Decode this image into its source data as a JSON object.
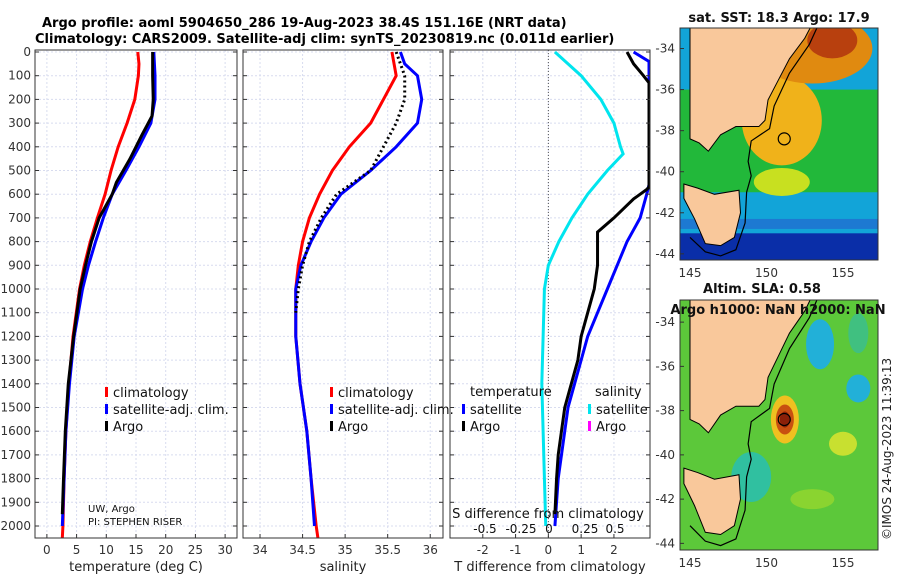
{
  "title_line1": "Argo profile: aoml 5904650_286 19-Aug-2023 38.4S 151.16E (NRT data)",
  "title_line2": "Climatology: CARS2009. Satellite-adj clim: synTS_20230819.nc (0.011d earlier)",
  "copyright": "©IMOS 24-Aug-2023 11:39:13",
  "colors": {
    "climatology": "#ff0000",
    "satellite": "#0000ff",
    "argo": "#000000",
    "s_satellite": "#00e5ee",
    "s_argo": "#ff00ff",
    "land": "#f9c89b"
  },
  "chart_data": [
    {
      "type": "line",
      "name": "temperature-profile",
      "xlabel": "temperature (deg C)",
      "ylabel": "depth",
      "xlim": [
        -2,
        32
      ],
      "ylim": [
        2050,
        0
      ],
      "xticks": [
        0,
        5,
        10,
        15,
        20,
        25,
        30
      ],
      "yticks": [
        0,
        100,
        200,
        300,
        400,
        500,
        600,
        700,
        800,
        900,
        1000,
        1100,
        1200,
        1300,
        1400,
        1500,
        1600,
        1700,
        1800,
        1900,
        2000
      ],
      "legend": [
        "climatology",
        "satellite-adj. clim.",
        "Argo"
      ],
      "note_line1": "UW, Argo",
      "note_line2": "PI: STEPHEN RISER",
      "series": [
        {
          "name": "climatology",
          "color": "#ff0000",
          "points": [
            [
              0,
              15.3
            ],
            [
              50,
              15.5
            ],
            [
              100,
              15.4
            ],
            [
              200,
              14.8
            ],
            [
              300,
              13.5
            ],
            [
              400,
              12
            ],
            [
              500,
              10.8
            ],
            [
              600,
              9.8
            ],
            [
              700,
              8.5
            ],
            [
              800,
              7.3
            ],
            [
              900,
              6.3
            ],
            [
              1000,
              5.5
            ],
            [
              1200,
              4.4
            ],
            [
              1400,
              3.7
            ],
            [
              1600,
              3.2
            ],
            [
              1800,
              2.9
            ],
            [
              2000,
              2.7
            ],
            [
              2050,
              2.6
            ]
          ]
        },
        {
          "name": "satellite-adj. clim.",
          "color": "#0000ff",
          "points": [
            [
              0,
              18
            ],
            [
              100,
              18.2
            ],
            [
              200,
              18.2
            ],
            [
              300,
              17.5
            ],
            [
              400,
              15.5
            ],
            [
              500,
              13.3
            ],
            [
              600,
              11
            ],
            [
              700,
              9.5
            ],
            [
              800,
              8.2
            ],
            [
              900,
              7
            ],
            [
              1000,
              6
            ],
            [
              1200,
              4.6
            ],
            [
              1400,
              3.8
            ],
            [
              1600,
              3.2
            ],
            [
              1800,
              2.9
            ],
            [
              2000,
              2.6
            ]
          ]
        },
        {
          "name": "Argo",
          "color": "#000000",
          "points": [
            [
              0,
              17.8
            ],
            [
              100,
              17.8
            ],
            [
              200,
              17.9
            ],
            [
              270,
              17.7
            ],
            [
              350,
              16
            ],
            [
              450,
              14
            ],
            [
              550,
              11.7
            ],
            [
              600,
              11
            ],
            [
              700,
              8.8
            ],
            [
              800,
              7.5
            ],
            [
              900,
              6.5
            ],
            [
              1000,
              5.6
            ],
            [
              1200,
              4.5
            ],
            [
              1400,
              3.6
            ],
            [
              1600,
              3.1
            ],
            [
              1800,
              2.8
            ],
            [
              1950,
              2.6
            ]
          ]
        }
      ]
    },
    {
      "type": "line",
      "name": "salinity-profile",
      "xlabel": "salinity",
      "xlim": [
        33.8,
        36.15
      ],
      "ylim": [
        2050,
        0
      ],
      "xticks": [
        34,
        34.5,
        35,
        35.5,
        36
      ],
      "legend": [
        "climatology",
        "satellite-adj. clim.",
        "Argo"
      ],
      "series": [
        {
          "name": "climatology",
          "color": "#ff0000",
          "points": [
            [
              0,
              35.55
            ],
            [
              100,
              35.6
            ],
            [
              200,
              35.45
            ],
            [
              300,
              35.3
            ],
            [
              400,
              35.05
            ],
            [
              500,
              34.85
            ],
            [
              600,
              34.7
            ],
            [
              700,
              34.58
            ],
            [
              800,
              34.5
            ],
            [
              900,
              34.45
            ],
            [
              1000,
              34.42
            ],
            [
              1200,
              34.42
            ],
            [
              1400,
              34.47
            ],
            [
              1600,
              34.55
            ],
            [
              1800,
              34.6
            ],
            [
              2000,
              34.66
            ],
            [
              2050,
              34.68
            ]
          ]
        },
        {
          "name": "satellite-adj. clim.",
          "color": "#0000ff",
          "points": [
            [
              0,
              35.65
            ],
            [
              50,
              35.7
            ],
            [
              100,
              35.85
            ],
            [
              200,
              35.9
            ],
            [
              300,
              35.85
            ],
            [
              400,
              35.6
            ],
            [
              500,
              35.3
            ],
            [
              600,
              34.95
            ],
            [
              700,
              34.75
            ],
            [
              800,
              34.6
            ],
            [
              900,
              34.48
            ],
            [
              1000,
              34.42
            ],
            [
              1200,
              34.42
            ],
            [
              1400,
              34.47
            ],
            [
              1600,
              34.55
            ],
            [
              1800,
              34.6
            ],
            [
              2000,
              34.64
            ]
          ]
        },
        {
          "name": "Argo",
          "color": "#000000",
          "dotted": true,
          "points": [
            [
              0,
              35.6
            ],
            [
              100,
              35.7
            ],
            [
              200,
              35.7
            ],
            [
              300,
              35.6
            ],
            [
              400,
              35.45
            ],
            [
              500,
              35.3
            ],
            [
              550,
              35.1
            ],
            [
              600,
              34.9
            ],
            [
              700,
              34.72
            ],
            [
              800,
              34.58
            ],
            [
              900,
              34.5
            ],
            [
              1000,
              34.45
            ],
            [
              1100,
              34.42
            ]
          ]
        }
      ]
    },
    {
      "type": "line",
      "name": "difference-profile",
      "xlabel": "T difference from climatology",
      "xlabel2": "S difference from climatology",
      "xlim": [
        -3,
        3.1
      ],
      "ylim": [
        2050,
        0
      ],
      "xticks": [
        -2,
        -1,
        0,
        1,
        2
      ],
      "xticks2": [
        "-0.5",
        "-0.25",
        "0",
        "0.25",
        "0.5"
      ],
      "legend_t_title": "temperature",
      "legend_s_title": "salinity",
      "legend_t": [
        "satellite",
        "Argo"
      ],
      "legend_s": [
        "satellite",
        "Argo"
      ],
      "series": [
        {
          "name": "T satellite",
          "color": "#0000ff",
          "points": [
            [
              0,
              2.6
            ],
            [
              40,
              3.2
            ],
            [
              560,
              3.2
            ],
            [
              600,
              3.0
            ],
            [
              700,
              2.8
            ],
            [
              800,
              2.4
            ],
            [
              900,
              2.1
            ],
            [
              1000,
              1.8
            ],
            [
              1100,
              1.5
            ],
            [
              1200,
              1.2
            ],
            [
              1300,
              1.0
            ],
            [
              1400,
              0.8
            ],
            [
              1500,
              0.6
            ],
            [
              1600,
              0.5
            ],
            [
              1700,
              0.4
            ],
            [
              1800,
              0.3
            ],
            [
              2000,
              0.2
            ]
          ]
        },
        {
          "name": "T Argo",
          "color": "#000000",
          "points": [
            [
              0,
              2.4
            ],
            [
              50,
              2.6
            ],
            [
              100,
              2.9
            ],
            [
              130,
              3.2
            ],
            [
              570,
              3.2
            ],
            [
              580,
              3.0
            ],
            [
              620,
              2.6
            ],
            [
              700,
              2.0
            ],
            [
              760,
              1.5
            ],
            [
              800,
              1.5
            ],
            [
              900,
              1.5
            ],
            [
              1000,
              1.4
            ],
            [
              1100,
              1.2
            ],
            [
              1200,
              1.0
            ],
            [
              1300,
              0.9
            ],
            [
              1400,
              0.7
            ],
            [
              1500,
              0.5
            ],
            [
              1600,
              0.4
            ],
            [
              1700,
              0.3
            ],
            [
              1800,
              0.25
            ],
            [
              1950,
              0.2
            ]
          ]
        },
        {
          "name": "S satellite",
          "color": "#00e5ee",
          "s_units": true,
          "points": [
            [
              0,
              0.05
            ],
            [
              50,
              0.15
            ],
            [
              100,
              0.25
            ],
            [
              200,
              0.4
            ],
            [
              300,
              0.5
            ],
            [
              400,
              0.55
            ],
            [
              430,
              0.57
            ],
            [
              500,
              0.45
            ],
            [
              600,
              0.3
            ],
            [
              700,
              0.18
            ],
            [
              800,
              0.08
            ],
            [
              900,
              0.0
            ],
            [
              1000,
              -0.03
            ],
            [
              1200,
              -0.04
            ],
            [
              1400,
              -0.05
            ],
            [
              1600,
              -0.04
            ],
            [
              1800,
              -0.03
            ],
            [
              2000,
              -0.02
            ]
          ]
        }
      ]
    }
  ],
  "maps": [
    {
      "title": "sat. SST: 18.3 Argo: 17.9",
      "yticks": [
        "-34",
        "-36",
        "-38",
        "-40",
        "-42",
        "-44"
      ],
      "xticks": [
        "145",
        "150",
        "155"
      ]
    },
    {
      "title_line1": "Altim. SLA: 0.58",
      "title_line2": "Argo h1000: NaN h2000: NaN",
      "yticks": [
        "-34",
        "-36",
        "-38",
        "-40",
        "-42",
        "-44"
      ],
      "xticks": [
        "145",
        "150",
        "155"
      ]
    }
  ],
  "float_position": {
    "lat": -38.4,
    "lon": 151.16
  }
}
